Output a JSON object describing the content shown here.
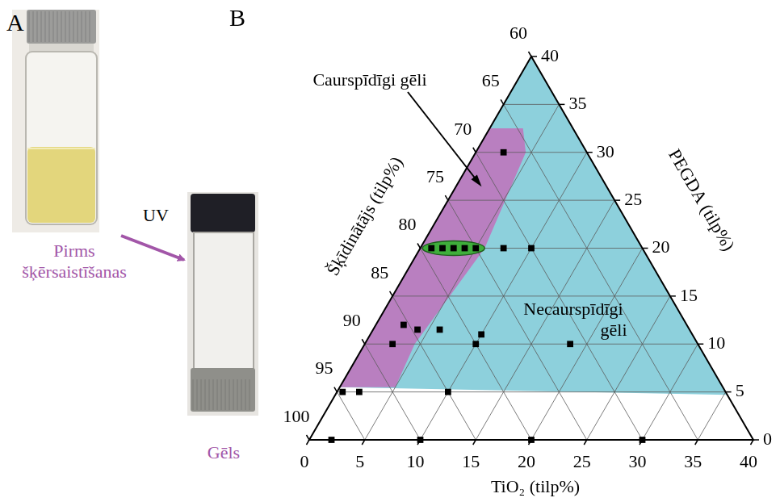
{
  "panel_a": {
    "letter": "A",
    "before_label": "Pirms šķērsaistīšanas",
    "arrow_label": "UV",
    "after_label": "Gēls"
  },
  "chart_data": {
    "letter": "B",
    "type": "ternary",
    "bottom_axis": {
      "label": "TiO₂ (tilp%)",
      "lim": [
        0,
        40
      ],
      "ticks": [
        0,
        5,
        10,
        15,
        20,
        25,
        30,
        35,
        40
      ]
    },
    "right_axis": {
      "label": "PEGDA (tilp%)",
      "lim": [
        0,
        40
      ],
      "ticks": [
        0,
        5,
        10,
        15,
        20,
        25,
        30,
        35,
        40
      ]
    },
    "left_axis": {
      "label": "Šķīdinātājs (tilp%)",
      "lim": [
        60,
        100
      ],
      "ticks": [
        60,
        65,
        70,
        75,
        80,
        85,
        90,
        95,
        100
      ]
    },
    "grid": true,
    "series": [
      {
        "color": "#000000",
        "marker": "square",
        "TiO2": [
          2.5,
          1,
          2,
          3,
          4,
          5,
          7.5,
          10,
          2.5,
          4,
          6,
          10,
          10,
          2.5,
          18.5,
          0.5,
          2,
          10,
          2,
          10,
          20,
          30
        ],
        "PEGDA": [
          30,
          20,
          20,
          20,
          20,
          20,
          20,
          20,
          12,
          11.5,
          11.5,
          11,
          10,
          10,
          10,
          5,
          5,
          5,
          0,
          0,
          0,
          0
        ]
      }
    ],
    "regions": [
      {
        "label": "Necaurspīdīgi gēli",
        "color": "#8dd0dc",
        "vertices": [
          [
            0,
            40
          ],
          [
            35.3,
            4.7
          ],
          [
            0,
            5.5
          ]
        ]
      },
      {
        "label": "Caurspīdīgi gēli",
        "color": "#b97fc0",
        "vertices": [
          [
            0,
            32.5
          ],
          [
            3,
            32.5
          ],
          [
            4.5,
            30
          ],
          [
            5.8,
            20
          ],
          [
            4.5,
            10
          ],
          [
            5,
            5.5
          ],
          [
            0,
            5.5
          ]
        ]
      }
    ],
    "highlight": {
      "color": "#3fae3b",
      "TiO2": [
        1,
        5
      ],
      "PEGDA": 20
    }
  }
}
